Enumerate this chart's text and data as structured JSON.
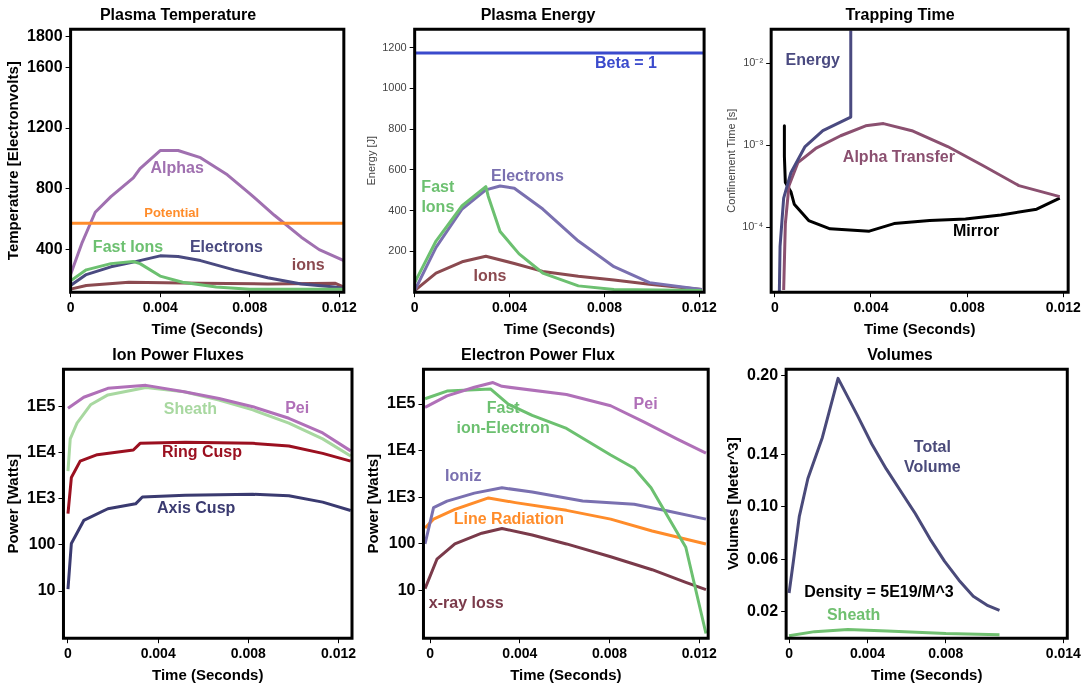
{
  "chart_data": [
    {
      "type": "line",
      "title": "Plasma Temperature",
      "xlabel": "Time (Seconds)",
      "ylabel": "Temperature [Electronvolts]",
      "xlim": [
        0,
        0.0122
      ],
      "xticks": [
        0,
        0.004,
        0.008,
        0.012
      ],
      "ylim": [
        120,
        1850
      ],
      "yticks": [
        400,
        800,
        1200,
        1600,
        1800
      ],
      "series": [
        {
          "name": "Potential",
          "color": "#ff8c2a",
          "x": [
            0,
            0.0122
          ],
          "values": [
            574,
            574
          ]
        },
        {
          "name": "Alphas",
          "color": "#a070b0",
          "x": [
            0,
            0.0005,
            0.0011,
            0.0018,
            0.0028,
            0.0031,
            0.004,
            0.0048,
            0.0058,
            0.007,
            0.008,
            0.0091,
            0.0103,
            0.0111,
            0.0122
          ],
          "values": [
            236,
            441,
            646,
            749,
            872,
            933,
            1052,
            1052,
            1005,
            892,
            769,
            626,
            482,
            400,
            328
          ]
        },
        {
          "name": "Fast Ions",
          "color": "#6cc070",
          "x": [
            0,
            0.0007,
            0.0018,
            0.0028,
            0.0031,
            0.004,
            0.005,
            0.0065,
            0.008,
            0.01,
            0.0122
          ],
          "values": [
            195,
            267,
            308,
            322,
            308,
            226,
            185,
            154,
            140,
            140,
            140
          ]
        },
        {
          "name": "Electrons",
          "color": "#4a4a80",
          "x": [
            0,
            0.0007,
            0.0018,
            0.0028,
            0.004,
            0.0048,
            0.0058,
            0.0073,
            0.0088,
            0.0103,
            0.0118,
            0.0122
          ],
          "values": [
            164,
            236,
            287,
            318,
            359,
            355,
            328,
            267,
            215,
            174,
            154,
            144
          ]
        },
        {
          "name": "ions",
          "color": "#8b4a50",
          "x": [
            0,
            0.0007,
            0.0026,
            0.0058,
            0.0088,
            0.0118,
            0.0122
          ],
          "values": [
            140,
            164,
            185,
            179,
            174,
            179,
            154
          ]
        }
      ]
    },
    {
      "type": "line",
      "title": "Plasma Energy",
      "xlabel": "Time (Seconds)",
      "ylabel": "Energy [J]",
      "xlim": [
        0,
        0.0122
      ],
      "xticks": [
        0,
        0.004,
        0.008,
        0.012
      ],
      "ylim": [
        0,
        1290
      ],
      "yticks": [
        200,
        400,
        600,
        800,
        1000,
        1200
      ],
      "series": [
        {
          "name": "Beta = 1",
          "color": "#3a4acc",
          "x": [
            0,
            0.0122
          ],
          "values": [
            1173,
            1173
          ]
        },
        {
          "name": "Fast Ions",
          "color": "#6cc070",
          "x": [
            0,
            0.0009,
            0.002,
            0.003,
            0.0031,
            0.0036,
            0.0044,
            0.0054,
            0.0069,
            0.0084,
            0.0121
          ],
          "values": [
            47,
            251,
            424,
            518,
            471,
            298,
            188,
            94,
            31,
            13,
            8
          ]
        },
        {
          "name": "Electrons",
          "color": "#7a70b0",
          "x": [
            0,
            0.0009,
            0.002,
            0.003,
            0.0036,
            0.0042,
            0.0054,
            0.0069,
            0.0084,
            0.0099,
            0.0121
          ],
          "values": [
            8,
            220,
            408,
            502,
            521,
            510,
            408,
            251,
            125,
            47,
            13
          ]
        },
        {
          "name": "Ions",
          "color": "#8b4a50",
          "x": [
            0,
            0.0009,
            0.002,
            0.003,
            0.0042,
            0.0054,
            0.0069,
            0.0084,
            0.0099,
            0.0121
          ],
          "values": [
            8,
            94,
            149,
            176,
            141,
            102,
            78,
            60,
            39,
            13
          ]
        }
      ]
    },
    {
      "type": "line",
      "title": "Trapping Time",
      "xlabel": "Time (Seconds)",
      "ylabel": "Confinement Time [s]",
      "log": "y",
      "xlim": [
        -0.00015,
        0.0122
      ],
      "xticks": [
        0,
        0.004,
        0.008,
        0.012
      ],
      "ylim": [
        1.6e-05,
        0.026
      ],
      "yticks": [
        {
          "value": 0.01,
          "label": "10⁻²"
        },
        {
          "value": 0.001,
          "label": "10⁻³"
        },
        {
          "value": 0.0001,
          "label": "10⁻⁴"
        }
      ],
      "series": [
        {
          "name": "Energy",
          "color": "#4a4a80",
          "x": [
            0.00019,
            0.00022,
            0.00037,
            0.00067,
            0.00126,
            0.002,
            0.00316,
            0.00316
          ],
          "values": [
            1.6e-05,
            5.8e-05,
            0.000225,
            0.00046,
            0.00096,
            0.0015,
            0.0022,
            0.025
          ]
        },
        {
          "name": "Alpha Transfer",
          "color": "#8b5070",
          "x": [
            0.00037,
            0.00044,
            0.00059,
            0.00096,
            0.0017,
            0.00274,
            0.00378,
            0.00452,
            0.0057,
            0.00719,
            0.00867,
            0.01015,
            0.01185
          ],
          "values": [
            1.7e-05,
            0.00011,
            0.00032,
            0.00061,
            0.00091,
            0.0013,
            0.00172,
            0.00183,
            0.0015,
            0.00096,
            0.00056,
            0.00032,
            0.000235
          ]
        },
        {
          "name": "Mirror",
          "color": "#000000",
          "x": [
            0.0004,
            0.0004,
            0.00044,
            0.00067,
            0.00081,
            0.00141,
            0.0023,
            0.00393,
            0.00496,
            0.00644,
            0.00793,
            0.0094,
            0.01089,
            0.01185
          ],
          "values": [
            0.00172,
            0.00073,
            0.00035,
            0.00027,
            0.00019,
            0.00012,
            9.5e-05,
            8.9e-05,
            0.00011,
            0.00012,
            0.000125,
            0.00014,
            0.000165,
            0.000225
          ]
        }
      ]
    },
    {
      "type": "line",
      "title": "Ion Power Fluxes",
      "xlabel": "Time (Seconds)",
      "ylabel": "Power [Watts]",
      "log": "y",
      "xlim": [
        -0.0002,
        0.0126
      ],
      "xticks": [
        0,
        0.004,
        0.008,
        0.012
      ],
      "ylim": [
        0.95,
        650000
      ],
      "yticks": [
        {
          "value": 100000,
          "label": "1E5"
        },
        {
          "value": 10000,
          "label": "1E4"
        },
        {
          "value": 1000,
          "label": "1E3"
        },
        100,
        10
      ],
      "series": [
        {
          "name": "Pei",
          "color": "#b070b8",
          "x": [
            0,
            0.0007,
            0.00177,
            0.00346,
            0.00515,
            0.0067,
            0.0082,
            0.0098,
            0.0113,
            0.01254
          ],
          "values": [
            92000,
            160000,
            250000,
            290000,
            210000,
            150000,
            100000,
            56000,
            27000,
            11000
          ]
        },
        {
          "name": "Sheath",
          "color": "#a8d8a0",
          "x": [
            0,
            0.0001,
            0.0004,
            0.001,
            0.00177,
            0.00346,
            0.00515,
            0.0067,
            0.0082,
            0.0098,
            0.0113,
            0.01254
          ],
          "values": [
            4000,
            20000,
            44000,
            110000,
            180000,
            260000,
            210000,
            140000,
            85000,
            44000,
            20000,
            8500
          ]
        },
        {
          "name": "Ring Cusp",
          "color": "#9b1020",
          "x": [
            0,
            0.00015,
            0.00054,
            0.0013,
            0.0029,
            0.0032,
            0.0052,
            0.0082,
            0.0098,
            0.0113,
            0.01254
          ],
          "values": [
            480,
            2900,
            6600,
            9100,
            11500,
            16000,
            17000,
            16000,
            14000,
            9700,
            6600
          ]
        },
        {
          "name": "Axis Cusp",
          "color": "#3a3a70",
          "x": [
            0,
            0.00015,
            0.0007,
            0.00177,
            0.003,
            0.0033,
            0.0052,
            0.0082,
            0.0098,
            0.0113,
            0.01254
          ],
          "values": [
            11,
            108,
            340,
            610,
            780,
            1100,
            1200,
            1260,
            1170,
            850,
            560
          ]
        }
      ]
    },
    {
      "type": "line",
      "title": "Electron Power Flux",
      "xlabel": "Time (Seconds)",
      "ylabel": "Power [Watts]",
      "log": "y",
      "xlim": [
        -0.0003,
        0.0124
      ],
      "xticks": [
        0,
        0.004,
        0.008,
        0.012
      ],
      "ylim": [
        0.95,
        560000
      ],
      "yticks": [
        {
          "value": 100000,
          "label": "1E5"
        },
        {
          "value": 10000,
          "label": "1E4"
        },
        {
          "value": 1000,
          "label": "1E3"
        },
        100,
        10
      ],
      "series": [
        {
          "name": "Pei",
          "color": "#b070b8",
          "x": [
            -0.00023,
            0.00075,
            0.00197,
            0.0028,
            0.0032,
            0.00608,
            0.00805,
            0.00955,
            0.011,
            0.0123
          ],
          "values": [
            85000,
            150000,
            230000,
            290000,
            240000,
            160000,
            92000,
            41000,
            18000,
            8900
          ]
        },
        {
          "name": "Fast ion-Electron",
          "color": "#6cc070",
          "x": [
            -0.00023,
            0.00075,
            0.0027,
            0.00348,
            0.00455,
            0.00608,
            0.00805,
            0.0091,
            0.00985,
            0.0114,
            0.0123
          ],
          "values": [
            130000,
            190000,
            210000,
            100000,
            57000,
            30000,
            8100,
            4200,
            1600,
            85,
            1.2
          ]
        },
        {
          "name": "Ioniz",
          "color": "#7a70b0",
          "x": [
            -0.00023,
            0.00015,
            0.00075,
            0.00197,
            0.0032,
            0.00455,
            0.0068,
            0.0091,
            0.0106,
            0.0123
          ],
          "values": [
            100,
            600,
            830,
            1230,
            1600,
            1300,
            830,
            710,
            510,
            340
          ]
        },
        {
          "name": "Line Radiation",
          "color": "#ff8c2a",
          "x": [
            -0.00023,
            0.00015,
            0.0011,
            0.0026,
            0.0038,
            0.00608,
            0.00805,
            0.0099,
            0.0123
          ],
          "values": [
            220,
            340,
            550,
            970,
            770,
            525,
            340,
            190,
            100
          ]
        },
        {
          "name": "x-ray loss",
          "color": "#7a3a4a",
          "x": [
            -0.00023,
            0.0003,
            0.0011,
            0.0023,
            0.0032,
            0.00455,
            0.00608,
            0.00805,
            0.0099,
            0.0114,
            0.0123
          ],
          "values": [
            11,
            47,
            100,
            170,
            215,
            155,
            100,
            53,
            28,
            15,
            10.5
          ]
        }
      ]
    },
    {
      "type": "line",
      "title": "Volumes",
      "xlabel": "Time (Seconds)",
      "ylabel": "Volumes [Meter^3]",
      "xlim": [
        -0.00015,
        0.0142
      ],
      "xticks": [
        0,
        0.004,
        0.008,
        0.014
      ],
      "ylim": [
        0,
        0.205
      ],
      "yticks": [
        0.02,
        0.06,
        {
          "value": 0.1,
          "label": "0.10"
        },
        0.14,
        {
          "value": 0.2,
          "label": "0.20"
        }
      ],
      "annotations": [
        "Density = 5E19/M^3"
      ],
      "series": [
        {
          "name": "Total Volume",
          "color": "#4a4a7a",
          "x": [
            0,
            0.00022,
            0.00052,
            0.00096,
            0.0017,
            0.0025,
            0.00348,
            0.00422,
            0.00496,
            0.0057,
            0.00644,
            0.00719,
            0.00793,
            0.00867,
            0.0094,
            0.01015,
            0.01074
          ],
          "values": [
            0.0345,
            0.0587,
            0.0926,
            0.1217,
            0.153,
            0.198,
            0.17,
            0.148,
            0.129,
            0.112,
            0.095,
            0.0757,
            0.0587,
            0.0442,
            0.032,
            0.0248,
            0.0212
          ]
        },
        {
          "name": "Sheath",
          "color": "#70c070",
          "x": [
            0,
            0.0013,
            0.003,
            0.005,
            0.008,
            0.01074
          ],
          "values": [
            0.0018,
            0.005,
            0.0067,
            0.0055,
            0.0035,
            0.0026
          ]
        }
      ]
    }
  ]
}
